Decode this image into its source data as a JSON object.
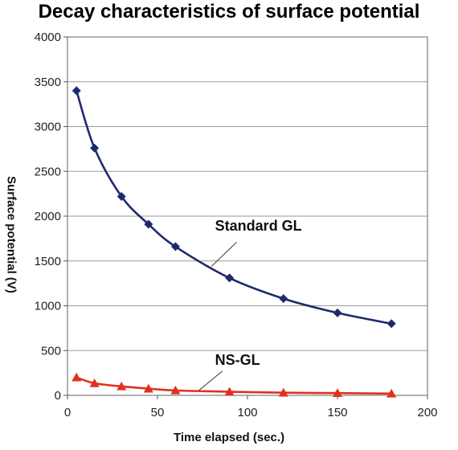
{
  "chart_data": {
    "type": "line",
    "title": "Decay characteristics of surface potential",
    "xlabel": "Time elapsed (sec.)",
    "ylabel": "Surface potential (V)",
    "xlim": [
      0,
      200
    ],
    "ylim": [
      0,
      4000
    ],
    "xticks": [
      0,
      50,
      100,
      150,
      200
    ],
    "yticks": [
      0,
      500,
      1000,
      1500,
      2000,
      2500,
      3000,
      3500,
      4000
    ],
    "grid": "horizontal",
    "series": [
      {
        "name": "Standard GL",
        "color": "#1f2a6e",
        "marker": "diamond",
        "x": [
          5,
          15,
          30,
          45,
          60,
          90,
          120,
          150,
          180
        ],
        "y": [
          3400,
          2760,
          2220,
          1910,
          1660,
          1310,
          1080,
          920,
          800
        ]
      },
      {
        "name": "NS-GL",
        "color": "#e0301e",
        "marker": "triangle",
        "x": [
          5,
          15,
          30,
          45,
          60,
          90,
          120,
          150,
          180
        ],
        "y": [
          200,
          135,
          100,
          75,
          55,
          40,
          30,
          25,
          20
        ]
      }
    ],
    "annotations": [
      {
        "text": "Standard GL",
        "series": 0
      },
      {
        "text": "NS-GL",
        "series": 1
      }
    ]
  }
}
